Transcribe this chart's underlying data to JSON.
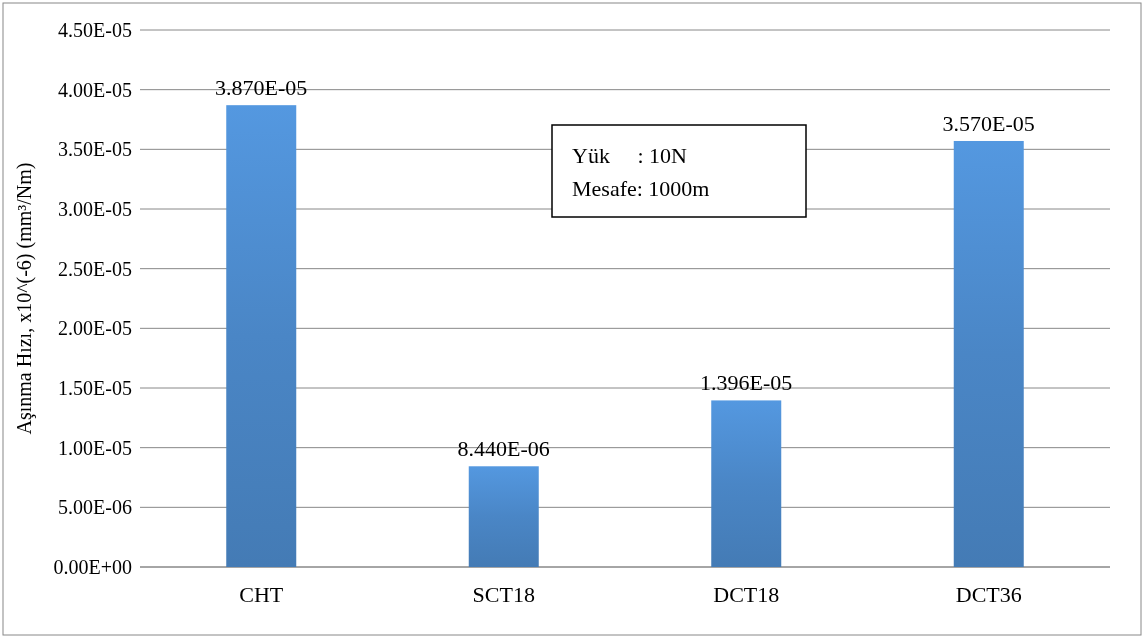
{
  "chart_data": {
    "type": "bar",
    "ylabel": "Aşınma Hızı, x10^(-6) (mm³/Nm)",
    "categories": [
      "CHT",
      "SCT18",
      "DCT18",
      "DCT36"
    ],
    "values": [
      3.87e-05,
      8.44e-06,
      1.396e-05,
      3.57e-05
    ],
    "value_labels": [
      "3.870E-05",
      "8.440E-06",
      "1.396E-05",
      "3.570E-05"
    ],
    "color": "#4a86c6",
    "ylim": [
      0,
      4.5e-05
    ],
    "yticks": [
      {
        "value": 0,
        "label": "0.00E+00"
      },
      {
        "value": 5e-06,
        "label": "5.00E-06"
      },
      {
        "value": 1e-05,
        "label": "1.00E-05"
      },
      {
        "value": 1.5e-05,
        "label": "1.50E-05"
      },
      {
        "value": 2e-05,
        "label": "2.00E-05"
      },
      {
        "value": 2.5e-05,
        "label": "2.50E-05"
      },
      {
        "value": 3e-05,
        "label": "3.00E-05"
      },
      {
        "value": 3.5e-05,
        "label": "3.50E-05"
      },
      {
        "value": 4e-05,
        "label": "4.00E-05"
      },
      {
        "value": 4.5e-05,
        "label": "4.50E-05"
      }
    ],
    "grid": "y",
    "annotations": [
      "Yük     : 10N",
      "Mesafe: 1000m"
    ]
  }
}
